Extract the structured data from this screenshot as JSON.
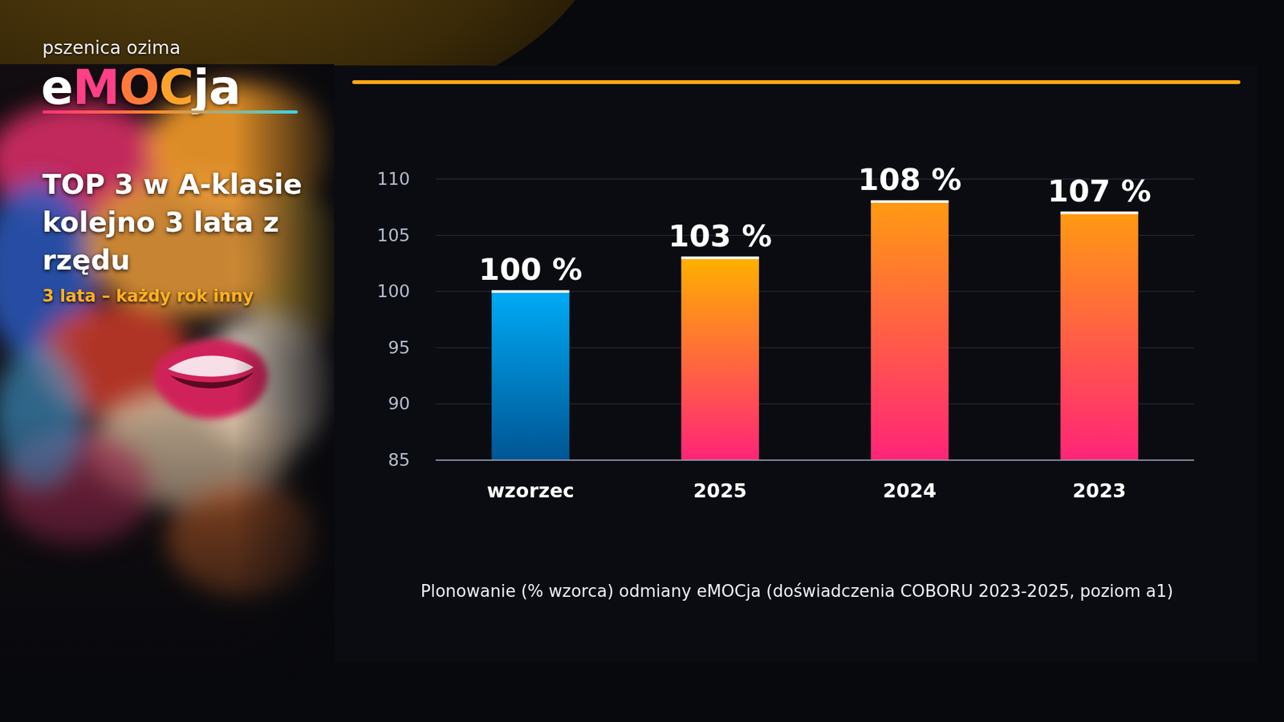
{
  "panel": {
    "crop": "pszenica ozima",
    "brand": "eMOCja",
    "headline": "TOP 3 w A-klasie kolejno 3 lata z rzędu",
    "tagline": "3 lata – każdy rok inny"
  },
  "chart_data": {
    "type": "bar",
    "title": "Plonowanie (% wzorca) odmiany eMOCja (doświadczenia COBORU 2023-2025, poziom a1)",
    "categories": [
      "wzorzec",
      "2025",
      "2024",
      "2023"
    ],
    "values": [
      100,
      103,
      108,
      107
    ],
    "value_labels": [
      "100 %",
      "103 %",
      "108 %",
      "107 %"
    ],
    "colors": [
      "#00aaf5",
      "#ffb000",
      "#ff9a12",
      "#ff9a12"
    ],
    "ylim": [
      85,
      110
    ],
    "yticks": [
      85,
      90,
      95,
      100,
      105,
      110
    ],
    "grid": true,
    "data_labels": true
  }
}
